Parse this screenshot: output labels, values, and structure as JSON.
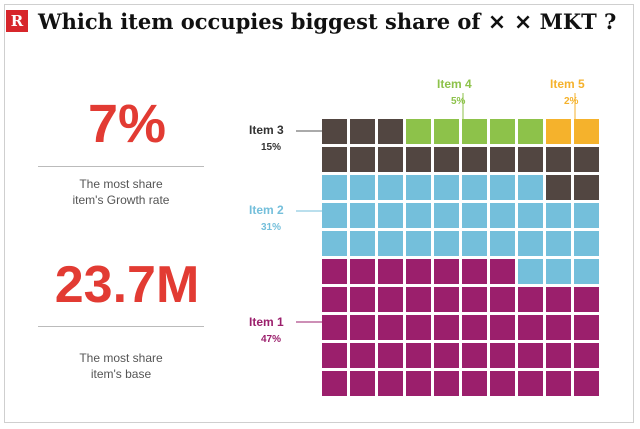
{
  "logo": {
    "text": "R"
  },
  "title": {
    "before": "Which item occupies biggest share of ",
    "mark": "× ×",
    "after": " MKT ?"
  },
  "stats": [
    {
      "value": "7%",
      "label_line1": "The most share",
      "label_line2": "item's Growth rate"
    },
    {
      "value": "23.7M",
      "label_line1": "The most share",
      "label_line2": "item's base"
    }
  ],
  "chart_data": {
    "type": "waffle",
    "grid": {
      "rows": 10,
      "cols": 10,
      "total_cells": 100
    },
    "series": [
      {
        "name": "Item 1",
        "share_label": "47%",
        "cells": 47,
        "color": "#9b1f6c"
      },
      {
        "name": "Item 2",
        "share_label": "31%",
        "cells": 31,
        "color": "#74bfdb"
      },
      {
        "name": "Item 3",
        "share_label": "15%",
        "cells": 15,
        "color": "#524641"
      },
      {
        "name": "Item 4",
        "share_label": "5%",
        "cells": 5,
        "color": "#8dc24a"
      },
      {
        "name": "Item 5",
        "share_label": "2%",
        "cells": 2,
        "color": "#f5b22c"
      }
    ]
  }
}
